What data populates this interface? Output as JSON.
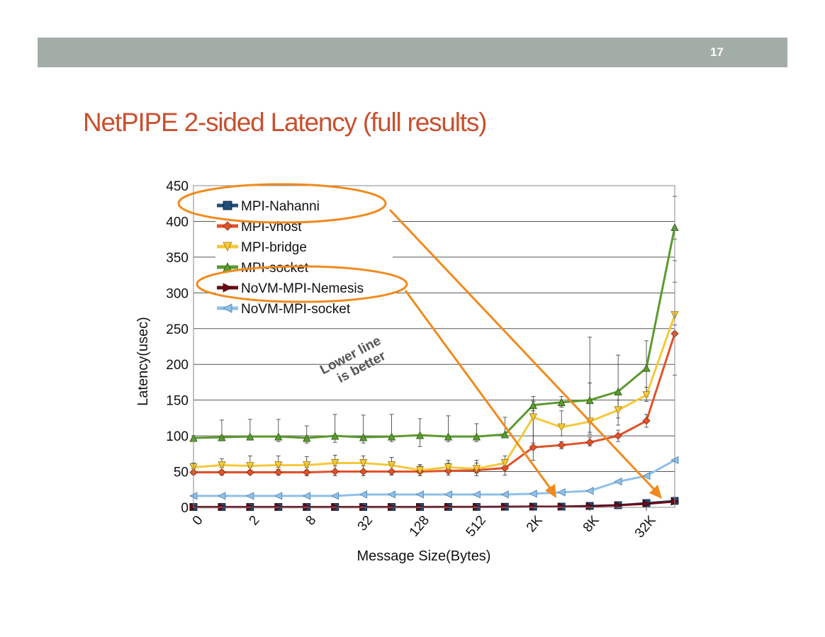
{
  "slide": {
    "number": "17",
    "title": "NetPIPE 2-sided Latency (full results)"
  },
  "colors": {
    "bar": "#a3ada7",
    "title": "#c8502e",
    "annotation": "#f08a1e"
  },
  "annotation": {
    "line1": "Lower line",
    "line2": "is better"
  },
  "chart_data": {
    "type": "line",
    "title": "",
    "xlabel": "Message Size(Bytes)",
    "ylabel": "Latency(usec)",
    "ylim": [
      0,
      450
    ],
    "yticks": [
      0,
      50,
      100,
      150,
      200,
      250,
      300,
      350,
      400,
      450
    ],
    "x": [
      0,
      1,
      2,
      3,
      8,
      12,
      32,
      64,
      128,
      256,
      512,
      1024,
      2048,
      4096,
      8192,
      16384,
      32768,
      65536
    ],
    "xtick_labels": [
      {
        "index": 0,
        "label": "0"
      },
      {
        "index": 2,
        "label": "2"
      },
      {
        "index": 4,
        "label": "8"
      },
      {
        "index": 6,
        "label": "32"
      },
      {
        "index": 8,
        "label": "128"
      },
      {
        "index": 10,
        "label": "512"
      },
      {
        "index": 12,
        "label": "2K"
      },
      {
        "index": 14,
        "label": "8K"
      },
      {
        "index": 16,
        "label": "32K"
      }
    ],
    "grid": true,
    "legend_position": "top-left",
    "series": [
      {
        "name": "MPI-Nahanni",
        "color": "#1f4e79",
        "marker": "square",
        "values": [
          0.5,
          0.5,
          0.5,
          0.5,
          0.5,
          0.5,
          0.5,
          0.5,
          0.5,
          0.6,
          0.6,
          0.8,
          1,
          1,
          2,
          3,
          6,
          9
        ]
      },
      {
        "name": "MPI-vhost",
        "color": "#e2522a",
        "marker": "diamond",
        "values": [
          49,
          49,
          49,
          49,
          49,
          50,
          50,
          50,
          50,
          51,
          52,
          55,
          84,
          87,
          91,
          100,
          121,
          243
        ]
      },
      {
        "name": "MPI-bridge",
        "color": "#f5c83a",
        "marker": "triangle-down",
        "values": [
          56,
          59,
          58,
          59,
          59,
          62,
          62,
          59,
          52,
          56,
          54,
          62,
          126,
          112,
          120,
          136,
          157,
          269
        ]
      },
      {
        "name": "MPI-socket",
        "color": "#5b9a2f",
        "marker": "triangle-up",
        "values": [
          97,
          98,
          99,
          99,
          97,
          100,
          98,
          99,
          101,
          99,
          99,
          102,
          143,
          147,
          150,
          162,
          195,
          392
        ]
      },
      {
        "name": "NoVM-MPI-Nemesis",
        "color": "#6b0a1a",
        "marker": "triangle-right",
        "values": [
          0.4,
          0.4,
          0.4,
          0.4,
          0.4,
          0.4,
          0.4,
          0.4,
          0.4,
          0.5,
          0.5,
          0.7,
          1,
          1,
          1.5,
          3,
          5,
          8
        ]
      },
      {
        "name": "NoVM-MPI-socket",
        "color": "#8fc0ea",
        "marker": "triangle-left",
        "values": [
          16,
          16,
          16,
          16,
          16,
          16,
          18,
          18,
          18,
          18,
          18,
          18,
          19,
          21,
          23,
          36,
          44,
          66
        ]
      }
    ],
    "error_bars": {
      "MPI-socket": [
        [
          94,
          100
        ],
        [
          93,
          122
        ],
        [
          94,
          123
        ],
        [
          92,
          123
        ],
        [
          90,
          114
        ],
        [
          91,
          130
        ],
        [
          90,
          129
        ],
        [
          92,
          130
        ],
        [
          85,
          124
        ],
        [
          92,
          128
        ],
        [
          92,
          117
        ],
        [
          98,
          126
        ],
        [
          135,
          155
        ],
        [
          140,
          155
        ],
        [
          105,
          238
        ],
        [
          115,
          213
        ],
        [
          155,
          233
        ],
        [
          375,
          435
        ]
      ],
      "MPI-bridge": [
        [
          50,
          62
        ],
        [
          52,
          68
        ],
        [
          52,
          72
        ],
        [
          53,
          72
        ],
        [
          52,
          71
        ],
        [
          52,
          73
        ],
        [
          52,
          72
        ],
        [
          52,
          70
        ],
        [
          48,
          60
        ],
        [
          50,
          66
        ],
        [
          48,
          66
        ],
        [
          52,
          72
        ],
        [
          90,
          148
        ],
        [
          100,
          135
        ],
        [
          102,
          174
        ],
        [
          125,
          150
        ],
        [
          148,
          168
        ],
        [
          255,
          345
        ]
      ],
      "MPI-vhost": [
        [
          46,
          54
        ],
        [
          45,
          56
        ],
        [
          46,
          56
        ],
        [
          45,
          56
        ],
        [
          44,
          56
        ],
        [
          44,
          58
        ],
        [
          44,
          58
        ],
        [
          45,
          58
        ],
        [
          44,
          58
        ],
        [
          45,
          62
        ],
        [
          44,
          62
        ],
        [
          45,
          65
        ],
        [
          66,
          150
        ],
        [
          82,
          92
        ],
        [
          86,
          98
        ],
        [
          92,
          108
        ],
        [
          112,
          130
        ],
        [
          185,
          315
        ]
      ]
    }
  }
}
